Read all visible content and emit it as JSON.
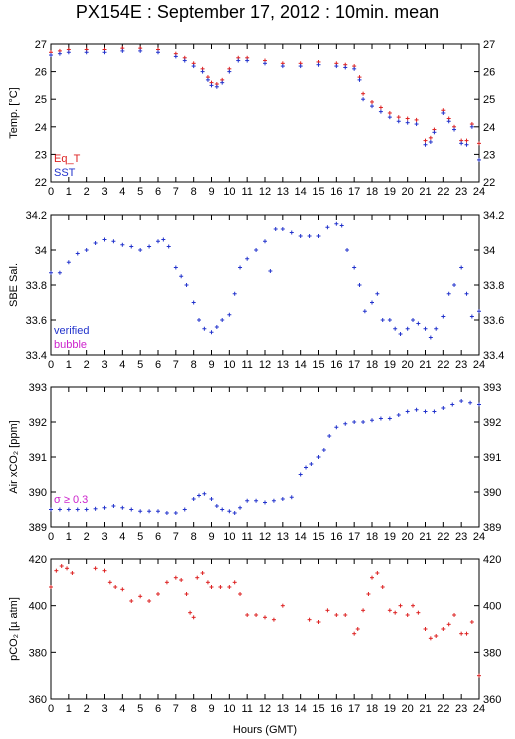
{
  "title": "PX154E : September 17, 2012 : 10min. mean",
  "xlabel": "Hours (GMT)",
  "chart_data": [
    {
      "type": "scatter",
      "ylabel": "Temp. [°C]",
      "ylim": [
        22,
        27
      ],
      "yticks": [
        22,
        23,
        24,
        25,
        26,
        27
      ],
      "xlim": [
        0,
        24
      ],
      "series": [
        {
          "name": "Eq_T",
          "color": "#dd2222",
          "x": [
            0,
            0.5,
            1,
            2,
            3,
            4,
            5,
            6,
            7,
            7.5,
            8,
            8.5,
            8.8,
            9,
            9.3,
            9.6,
            10,
            10.5,
            11,
            12,
            13,
            14,
            15,
            16,
            16.5,
            17,
            17.3,
            17.5,
            18,
            18.5,
            19,
            19.5,
            20,
            20.5,
            21,
            21.3,
            21.5,
            22,
            22.3,
            22.6,
            23,
            23.3,
            23.6,
            24
          ],
          "y": [
            26.7,
            26.75,
            26.8,
            26.8,
            26.8,
            26.85,
            26.85,
            26.8,
            26.65,
            26.5,
            26.3,
            26.1,
            25.8,
            25.6,
            25.55,
            25.7,
            26.1,
            26.5,
            26.5,
            26.4,
            26.3,
            26.3,
            26.35,
            26.3,
            26.25,
            26.2,
            25.8,
            25.2,
            24.9,
            24.7,
            24.5,
            24.35,
            24.3,
            24.25,
            23.5,
            23.6,
            23.9,
            24.6,
            24.3,
            24.0,
            23.5,
            23.5,
            24.1,
            23.4
          ]
        },
        {
          "name": "SST",
          "color": "#2233cc",
          "x": [
            0,
            0.5,
            1,
            2,
            3,
            4,
            5,
            6,
            7,
            7.5,
            8,
            8.5,
            8.8,
            9,
            9.3,
            9.6,
            10,
            10.5,
            11,
            12,
            13,
            14,
            15,
            16,
            16.5,
            17,
            17.3,
            17.5,
            18,
            18.5,
            19,
            19.5,
            20,
            20.5,
            21,
            21.3,
            21.5,
            22,
            22.3,
            22.6,
            23,
            23.3,
            23.6,
            24
          ],
          "y": [
            26.6,
            26.65,
            26.7,
            26.7,
            26.7,
            26.75,
            26.75,
            26.7,
            26.55,
            26.4,
            26.2,
            26.0,
            25.7,
            25.5,
            25.45,
            25.6,
            26.0,
            26.4,
            26.4,
            26.3,
            26.2,
            26.2,
            26.25,
            26.2,
            26.15,
            26.1,
            25.7,
            25.0,
            24.75,
            24.55,
            24.35,
            24.2,
            24.15,
            24.1,
            23.35,
            23.45,
            23.8,
            24.5,
            24.2,
            23.9,
            23.4,
            23.35,
            24.0,
            22.8
          ]
        }
      ]
    },
    {
      "type": "scatter",
      "ylabel": "SBE Sal.",
      "ylim": [
        33.4,
        34.2
      ],
      "yticks": [
        33.4,
        33.6,
        33.8,
        34,
        34.2
      ],
      "xlim": [
        0,
        24
      ],
      "series": [
        {
          "name": "verified",
          "color": "#2233cc",
          "x": [
            0,
            0.5,
            1,
            1.5,
            2,
            2.5,
            3,
            3.5,
            4,
            4.5,
            5,
            5.5,
            6,
            6.3,
            6.6,
            7,
            7.3,
            7.6,
            8,
            8.3,
            8.6,
            9,
            9.3,
            9.6,
            10,
            10.3,
            10.6,
            11,
            11.5,
            12,
            12.3,
            12.6,
            13,
            13.5,
            14,
            14.5,
            15,
            15.5,
            16,
            16.3,
            16.6,
            17,
            17.3,
            17.6,
            18,
            18.3,
            18.6,
            19,
            19.3,
            19.6,
            20,
            20.3,
            20.6,
            21,
            21.3,
            21.6,
            22,
            22.3,
            22.6,
            23,
            23.3,
            23.6,
            24
          ],
          "y": [
            33.87,
            33.87,
            33.93,
            33.98,
            34.0,
            34.04,
            34.06,
            34.05,
            34.03,
            34.02,
            34.0,
            34.02,
            34.05,
            34.06,
            34.02,
            33.9,
            33.85,
            33.8,
            33.7,
            33.6,
            33.55,
            33.53,
            33.56,
            33.6,
            33.63,
            33.75,
            33.9,
            33.95,
            34.0,
            34.05,
            33.88,
            34.12,
            34.12,
            34.1,
            34.08,
            34.08,
            34.08,
            34.13,
            34.15,
            34.14,
            34.0,
            33.9,
            33.8,
            33.65,
            33.7,
            33.75,
            33.6,
            33.6,
            33.55,
            33.52,
            33.55,
            33.6,
            33.58,
            33.55,
            33.5,
            33.55,
            33.62,
            33.75,
            33.8,
            33.9,
            33.75,
            33.62,
            33.65
          ]
        }
      ]
    },
    {
      "type": "scatter",
      "ylabel": "Air xCO₂ [ppm]",
      "ylim": [
        389,
        393
      ],
      "yticks": [
        389,
        390,
        391,
        392,
        393
      ],
      "xlim": [
        0,
        24
      ],
      "annotation": "σ ≥ 0.3",
      "series": [
        {
          "name": "",
          "color": "#2233cc",
          "x": [
            0,
            0.5,
            1,
            1.5,
            2,
            2.5,
            3,
            3.5,
            4,
            4.5,
            5,
            5.5,
            6,
            6.5,
            7,
            7.5,
            8,
            8.3,
            8.6,
            9,
            9.3,
            9.6,
            10,
            10.3,
            10.6,
            11,
            11.5,
            12,
            12.5,
            13,
            13.5,
            14,
            14.3,
            14.6,
            15,
            15.3,
            15.6,
            16,
            16.5,
            17,
            17.5,
            18,
            18.5,
            19,
            19.5,
            20,
            20.5,
            21,
            21.5,
            22,
            22.5,
            23,
            23.5,
            24
          ],
          "y": [
            389.5,
            389.5,
            389.5,
            389.5,
            389.5,
            389.52,
            389.55,
            389.6,
            389.55,
            389.5,
            389.45,
            389.45,
            389.45,
            389.4,
            389.4,
            389.5,
            389.8,
            389.9,
            389.95,
            389.8,
            389.6,
            389.5,
            389.45,
            389.4,
            389.55,
            389.75,
            389.75,
            389.7,
            389.75,
            389.8,
            389.85,
            390.5,
            390.7,
            390.8,
            391.0,
            391.2,
            391.6,
            391.85,
            391.95,
            392.0,
            392.0,
            392.05,
            392.1,
            392.1,
            392.2,
            392.3,
            392.35,
            392.3,
            392.3,
            392.4,
            392.5,
            392.6,
            392.55,
            392.5
          ]
        }
      ]
    },
    {
      "type": "scatter",
      "ylabel": "pCO₂ [µ atm]",
      "ylim": [
        360,
        420
      ],
      "yticks": [
        360,
        380,
        400,
        420
      ],
      "xlim": [
        0,
        24
      ],
      "series": [
        {
          "name": "",
          "color": "#dd2222",
          "x": [
            0,
            0.3,
            0.6,
            0.9,
            1.2,
            2.5,
            3,
            3.3,
            3.6,
            4,
            4.5,
            5,
            5.5,
            6,
            6.5,
            7,
            7.3,
            7.6,
            7.8,
            8,
            8.2,
            8.5,
            8.8,
            9,
            9.5,
            10,
            10.3,
            10.6,
            11,
            11.5,
            12,
            12.5,
            13,
            14.5,
            15,
            15.5,
            16,
            16.5,
            17,
            17.2,
            17.5,
            17.8,
            18,
            18.3,
            18.6,
            19,
            19.3,
            19.6,
            20,
            20.3,
            20.6,
            21,
            21.3,
            21.6,
            22,
            22.3,
            22.6,
            23,
            23.3,
            23.6,
            24
          ],
          "y": [
            408,
            415,
            417,
            416,
            414,
            416,
            415,
            410,
            408,
            407,
            402,
            404,
            402,
            405,
            410,
            412,
            411,
            405,
            397,
            395,
            412,
            414,
            410,
            408,
            408,
            408,
            410,
            405,
            396,
            396,
            395,
            394,
            400,
            394,
            393,
            398,
            396,
            396,
            388,
            390,
            398,
            405,
            412,
            414,
            408,
            398,
            397,
            400,
            396,
            400,
            397,
            390,
            386,
            387,
            390,
            392,
            396,
            388,
            388,
            393,
            370
          ]
        }
      ]
    }
  ],
  "legend": {
    "panel1": [
      {
        "label": "Eq_T",
        "color": "#dd2222"
      },
      {
        "label": "SST",
        "color": "#2233cc"
      }
    ],
    "panel2": [
      {
        "label": "verified",
        "color": "#2233cc"
      },
      {
        "label": "bubble",
        "color": "#cc22cc"
      }
    ]
  },
  "xticks": [
    0,
    1,
    2,
    3,
    4,
    5,
    6,
    7,
    8,
    9,
    10,
    11,
    12,
    13,
    14,
    15,
    16,
    17,
    18,
    19,
    20,
    21,
    22,
    23,
    24
  ],
  "annotation_color": "#cc22cc"
}
